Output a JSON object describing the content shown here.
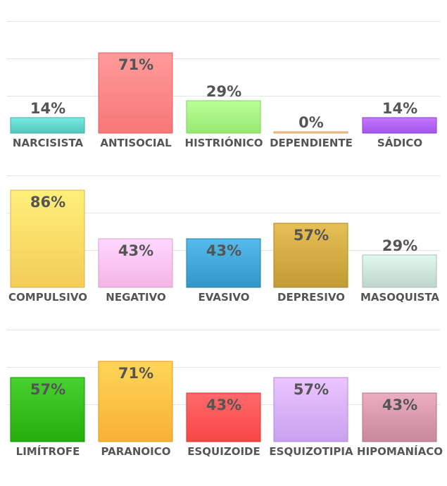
{
  "chart_data": [
    {
      "type": "bar",
      "categories": [
        "NARCISISTA",
        "ANTISOCIAL",
        "HISTRIÓNICO",
        "DEPENDIENTE",
        "SÁDICO"
      ],
      "values": [
        14,
        71,
        29,
        0,
        14
      ],
      "value_labels": [
        "14%",
        "71%",
        "29%",
        "0%",
        "14%"
      ],
      "colors": [
        "#5bcfc6",
        "#ff7f7f",
        "#9ef07a",
        "#f6c08a",
        "#a95cf0"
      ],
      "ylim": [
        0,
        100
      ],
      "grid": true
    },
    {
      "type": "bar",
      "categories": [
        "COMPULSIVO",
        "NEGATIVO",
        "EVASIVO",
        "DEPRESIVO",
        "MASOQUISTA"
      ],
      "values": [
        86,
        43,
        43,
        57,
        29
      ],
      "value_labels": [
        "86%",
        "43%",
        "43%",
        "57%",
        "29%"
      ],
      "colors": [
        "#fbd45e",
        "#fbbcec",
        "#3a9fd0",
        "#caa33a",
        "#c5ddd3"
      ],
      "ylim": [
        0,
        100
      ],
      "grid": true
    },
    {
      "type": "bar",
      "categories": [
        "LIMÍTROFE",
        "PARANOICO",
        "ESQUIZOIDE",
        "ESQUIZOTIPIA",
        "HIPOMANÍACO"
      ],
      "values": [
        57,
        71,
        43,
        57,
        43
      ],
      "value_labels": [
        "57%",
        "71%",
        "43%",
        "57%",
        "43%"
      ],
      "colors": [
        "#2cb515",
        "#ffb93c",
        "#ff4e4e",
        "#d0a9f7",
        "#d091a4"
      ],
      "ylim": [
        0,
        100
      ],
      "grid": true
    }
  ]
}
